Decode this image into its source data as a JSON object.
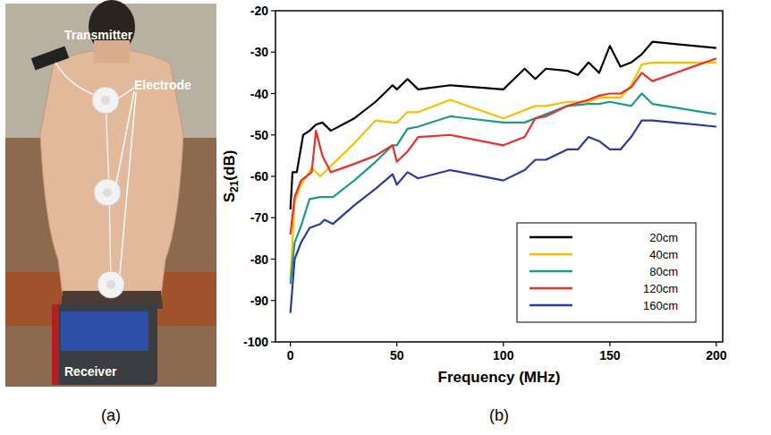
{
  "figure": {
    "panels": [
      "(a)",
      "(b)"
    ]
  },
  "photo": {
    "labels": {
      "transmitter": "Transmitter",
      "electrode": "Electrode",
      "receiver": "Receiver"
    }
  },
  "chart_data": {
    "type": "line",
    "x_label": "Frequency (MHz)",
    "y_label": "S21(dB)",
    "xlim": [
      -7,
      203
    ],
    "xticks": [
      0,
      50,
      100,
      150,
      200
    ],
    "ylim": [
      -100,
      -20
    ],
    "yticks": [
      -100,
      -90,
      -80,
      -70,
      -60,
      -50,
      -40,
      -30,
      -20
    ],
    "grid": false,
    "legend": "lower right",
    "series": [
      {
        "name": "20cm",
        "color": "#000000",
        "x": [
          0,
          1,
          3,
          6,
          9,
          12,
          15,
          19,
          30,
          40,
          48,
          50,
          55,
          60,
          75,
          100,
          110,
          115,
          120,
          130,
          135,
          140,
          145,
          150,
          155,
          160,
          165,
          170,
          200
        ],
        "values": [
          -68,
          -59,
          -59,
          -50,
          -49,
          -47.5,
          -47,
          -49,
          -46,
          -42,
          -38,
          -39,
          -36.5,
          -39,
          -38,
          -39,
          -34,
          -36.5,
          -34,
          -34.5,
          -35.5,
          -32.5,
          -35,
          -28.5,
          -33.5,
          -32.5,
          -30.5,
          -27.5,
          -29
        ]
      },
      {
        "name": "40cm",
        "color": "#f5c000",
        "x": [
          0,
          2,
          5,
          10,
          14,
          20,
          30,
          40,
          48,
          50,
          55,
          60,
          75,
          100,
          115,
          120,
          130,
          140,
          145,
          155,
          160,
          165,
          170,
          200
        ],
        "values": [
          -85,
          -66,
          -62,
          -58,
          -60,
          -57,
          -52,
          -46.5,
          -47,
          -47,
          -44.5,
          -44.5,
          -41.5,
          -46,
          -43,
          -43,
          -42,
          -42,
          -41,
          -41,
          -38,
          -33,
          -32.5,
          -32.5
        ]
      },
      {
        "name": "80cm",
        "color": "#1a9a8a",
        "x": [
          0,
          2,
          5,
          9,
          14,
          20,
          30,
          40,
          48,
          50,
          55,
          60,
          75,
          100,
          110,
          120,
          130,
          140,
          145,
          150,
          160,
          165,
          170,
          200
        ],
        "values": [
          -86,
          -76,
          -72,
          -65.5,
          -65,
          -65,
          -61,
          -56.5,
          -52.5,
          -52.5,
          -48.5,
          -48,
          -45.5,
          -47,
          -47,
          -45,
          -43,
          -42.5,
          -42.5,
          -42,
          -43,
          -40,
          -42.5,
          -45
        ]
      },
      {
        "name": "120cm",
        "color": "#e8302a",
        "x": [
          0,
          2,
          5,
          10,
          12,
          15,
          19,
          30,
          40,
          48,
          50,
          55,
          60,
          75,
          100,
          110,
          115,
          120,
          130,
          140,
          145,
          150,
          155,
          160,
          165,
          170,
          200
        ],
        "values": [
          -74,
          -65,
          -61,
          -59,
          -49,
          -55,
          -59,
          -57,
          -55,
          -52.5,
          -56.5,
          -54,
          -50.5,
          -50,
          -52.5,
          -50.5,
          -46,
          -45.5,
          -43,
          -41.5,
          -40.5,
          -40,
          -40,
          -38.5,
          -35,
          -37,
          -31.5
        ]
      },
      {
        "name": "160cm",
        "color": "#2b3a9e",
        "x": [
          0,
          2,
          5,
          9,
          14,
          16,
          20,
          30,
          40,
          48,
          50,
          55,
          60,
          75,
          100,
          110,
          115,
          120,
          130,
          135,
          140,
          145,
          150,
          155,
          160,
          165,
          170,
          200
        ],
        "values": [
          -93,
          -80,
          -76,
          -72.5,
          -71.5,
          -70.5,
          -71.5,
          -67,
          -63,
          -59.5,
          -62,
          -59,
          -60.5,
          -58.5,
          -61,
          -58.5,
          -56,
          -56,
          -53.5,
          -53.5,
          -50.5,
          -51.5,
          -53.5,
          -53.5,
          -50.5,
          -46.5,
          -46.5,
          -48
        ]
      }
    ]
  }
}
